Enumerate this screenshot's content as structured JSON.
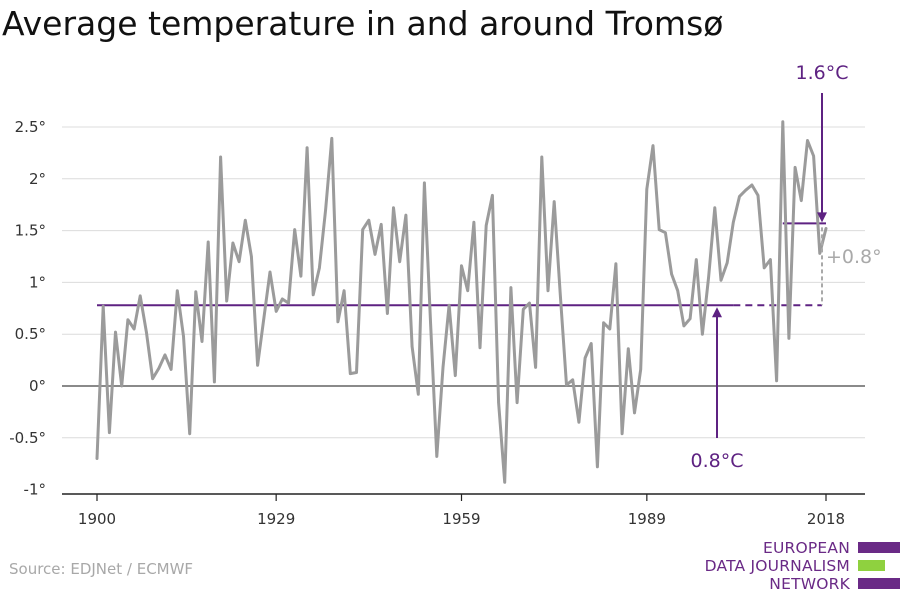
{
  "chart_data": {
    "type": "line",
    "title": "Average temperature in and around Tromsø",
    "xlabel": "",
    "ylabel": "",
    "xlim": [
      1900,
      2018
    ],
    "ylim": [
      -1,
      2.5
    ],
    "x_ticks": [
      1900,
      1929,
      1959,
      1989,
      2018
    ],
    "x_tick_labels": [
      "1900",
      "1929",
      "1959",
      "1989",
      "2018"
    ],
    "y_ticks": [
      -1,
      -0.5,
      0,
      0.5,
      1,
      1.5,
      2,
      2.5
    ],
    "y_tick_labels": [
      "-1°",
      "-0.5°",
      "0°",
      "0.5°",
      "1°",
      "1.5°",
      "2°",
      "2.5°"
    ],
    "grid": true,
    "series": [
      {
        "x": [
          1900,
          1901,
          1902,
          1903,
          1904,
          1905,
          1906,
          1907,
          1908,
          1909,
          1910,
          1911,
          1912,
          1913,
          1914,
          1915,
          1916,
          1917,
          1918,
          1919,
          1920,
          1921,
          1922,
          1923,
          1924,
          1925,
          1926,
          1927,
          1928,
          1929,
          1930,
          1931,
          1932,
          1933,
          1934,
          1935,
          1936,
          1937,
          1938,
          1939,
          1940,
          1941,
          1942,
          1943,
          1944,
          1945,
          1946,
          1947,
          1948,
          1949,
          1950,
          1951,
          1952,
          1953,
          1954,
          1955,
          1956,
          1957,
          1958,
          1959,
          1960,
          1961,
          1962,
          1963,
          1964,
          1965,
          1966,
          1967,
          1968,
          1969,
          1970,
          1971,
          1972,
          1973,
          1974,
          1975,
          1976,
          1977,
          1978,
          1979,
          1980,
          1981,
          1982,
          1983,
          1984,
          1985,
          1986,
          1987,
          1988,
          1989,
          1990,
          1991,
          1992,
          1993,
          1994,
          1995,
          1996,
          1997,
          1998,
          1999,
          2000,
          2001,
          2002,
          2003,
          2004,
          2005,
          2006,
          2007,
          2008,
          2009,
          2010,
          2011,
          2012,
          2013,
          2014,
          2015,
          2016,
          2017,
          2018
        ],
        "values": [
          -0.7,
          0.77,
          -0.45,
          0.52,
          0.0,
          0.64,
          0.55,
          0.87,
          0.52,
          0.07,
          0.17,
          0.3,
          0.16,
          0.92,
          0.48,
          -0.46,
          0.91,
          0.43,
          1.39,
          0.04,
          2.21,
          0.82,
          1.38,
          1.2,
          1.6,
          1.25,
          0.2,
          0.65,
          1.1,
          0.72,
          0.84,
          0.8,
          1.51,
          1.06,
          2.3,
          0.88,
          1.14,
          1.7,
          2.39,
          0.62,
          0.92,
          0.12,
          0.13,
          1.51,
          1.6,
          1.27,
          1.56,
          0.7,
          1.72,
          1.2,
          1.65,
          0.38,
          -0.08,
          1.96,
          0.6,
          -0.68,
          0.18,
          0.78,
          0.1,
          1.16,
          0.92,
          1.58,
          0.37,
          1.55,
          1.84,
          -0.16,
          -0.93,
          0.95,
          -0.16,
          0.74,
          0.8,
          0.18,
          2.21,
          0.92,
          1.78,
          0.88,
          0.01,
          0.06,
          -0.35,
          0.27,
          0.41,
          -0.78,
          0.61,
          0.55,
          1.18,
          -0.46,
          0.36,
          -0.26,
          0.16,
          1.9,
          2.32,
          1.51,
          1.48,
          1.08,
          0.92,
          0.58,
          0.65,
          1.22,
          0.5,
          1.05,
          1.72,
          1.02,
          1.19,
          1.58,
          1.83,
          1.89,
          1.94,
          1.84,
          1.14,
          1.22,
          0.05,
          2.55,
          0.46,
          2.11,
          1.79,
          2.37,
          2.22,
          1.28,
          1.52
        ]
      }
    ],
    "reference_lines": [
      {
        "label": "0.8°C",
        "y": 0.78,
        "x_start": 1900,
        "x_end": 2018
      },
      {
        "label": "1.6°C",
        "y": 1.57,
        "x_start": 2011,
        "x_end": 2018
      }
    ],
    "difference_label": "+0.8°",
    "colors": {
      "series": "#9b9b9b",
      "reference": "#5e2282",
      "zero_line": "#8a8a8a",
      "grid": "#dcdcdc",
      "difference": "#a9a9a9"
    }
  },
  "source": "Source: EDJNet / ECMWF",
  "logo": {
    "lines": [
      "EUROPEAN",
      "DATA JOURNALISM",
      "NETWORK"
    ],
    "colors": {
      "purple": "#6a2a86",
      "green": "#8fd13f"
    }
  }
}
